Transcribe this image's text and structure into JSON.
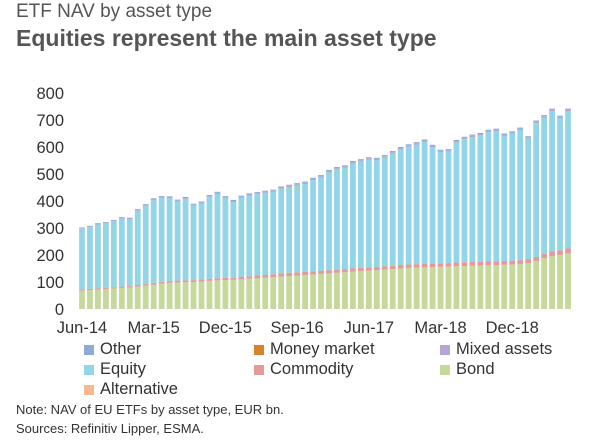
{
  "header": {
    "subtitle": "ETF NAV by asset type",
    "title": "Equities represent the main asset type"
  },
  "colors": {
    "other": "#8ea9d6",
    "money_market": "#d9822b",
    "mixed_assets": "#b4a7d6",
    "equity": "#92d5e6",
    "commodity": "#e59a9a",
    "bond": "#c4d99a",
    "alternative": "#f7b98b",
    "axis_text": "#333333"
  },
  "chart_data": {
    "type": "bar",
    "stacked": true,
    "x_tick_labels": [
      "Jun-14",
      "Mar-15",
      "Dec-15",
      "Sep-16",
      "Jun-17",
      "Mar-18",
      "Dec-18"
    ],
    "y_tick_labels": [
      "0",
      "100",
      "200",
      "300",
      "400",
      "500",
      "600",
      "700",
      "800"
    ],
    "ylim": [
      0,
      800
    ],
    "legend_position": "bottom",
    "grid": false,
    "series_order": [
      "Bond",
      "Commodity",
      "Equity",
      "Mixed assets",
      "Other"
    ],
    "totals": [
      302,
      308,
      318,
      322,
      330,
      340,
      338,
      370,
      388,
      410,
      418,
      417,
      405,
      415,
      390,
      398,
      422,
      434,
      418,
      404,
      420,
      428,
      433,
      438,
      442,
      454,
      460,
      466,
      472,
      486,
      496,
      515,
      526,
      532,
      548,
      555,
      562,
      560,
      570,
      585,
      600,
      610,
      618,
      628,
      608,
      590,
      592,
      626,
      638,
      646,
      652,
      664,
      668,
      650,
      658,
      672,
      640,
      698,
      718,
      742,
      716,
      742
    ],
    "bond": [
      68,
      70,
      72,
      74,
      76,
      78,
      80,
      83,
      86,
      90,
      94,
      97,
      98,
      99,
      100,
      102,
      104,
      106,
      107,
      108,
      110,
      112,
      114,
      116,
      118,
      120,
      122,
      124,
      126,
      128,
      130,
      132,
      134,
      136,
      138,
      140,
      142,
      144,
      146,
      148,
      150,
      152,
      153,
      154,
      155,
      156,
      157,
      158,
      159,
      160,
      161,
      162,
      163,
      164,
      165,
      167,
      170,
      178,
      188,
      196,
      200,
      206
    ],
    "commodity": [
      5,
      5,
      5,
      5,
      5,
      5,
      5,
      6,
      6,
      7,
      7,
      7,
      7,
      7,
      7,
      7,
      8,
      8,
      8,
      8,
      9,
      9,
      10,
      10,
      11,
      12,
      12,
      12,
      12,
      12,
      12,
      12,
      12,
      12,
      12,
      12,
      12,
      12,
      12,
      12,
      13,
      13,
      13,
      13,
      13,
      13,
      13,
      14,
      14,
      14,
      14,
      14,
      14,
      14,
      14,
      14,
      15,
      15,
      16,
      17,
      17,
      18
    ],
    "mixed_assets": [
      2,
      2,
      2,
      2,
      2,
      2,
      2,
      3,
      3,
      3,
      3,
      3,
      3,
      3,
      3,
      3,
      3,
      4,
      4,
      4,
      4,
      4,
      4,
      4,
      4,
      4,
      4,
      5,
      5,
      5,
      5,
      5,
      5,
      5,
      5,
      5,
      5,
      5,
      5,
      5,
      5,
      5,
      5,
      5,
      5,
      5,
      5,
      5,
      5,
      5,
      5,
      5,
      5,
      5,
      5,
      5,
      5,
      6,
      6,
      6,
      6,
      6
    ],
    "other": [
      3,
      3,
      3,
      3,
      3,
      3,
      3,
      3,
      4,
      4,
      4,
      4,
      4,
      4,
      4,
      4,
      4,
      4,
      4,
      4,
      4,
      4,
      4,
      4,
      4,
      4,
      4,
      4,
      4,
      4,
      4,
      4,
      4,
      4,
      4,
      4,
      4,
      4,
      4,
      4,
      4,
      4,
      4,
      4,
      4,
      4,
      4,
      4,
      4,
      4,
      4,
      4,
      4,
      4,
      4,
      4,
      4,
      4,
      4,
      4,
      4,
      4
    ]
  },
  "legend": {
    "items": [
      {
        "label": "Other",
        "color_key": "other"
      },
      {
        "label": "Money market",
        "color_key": "money_market"
      },
      {
        "label": "Mixed assets",
        "color_key": "mixed_assets"
      },
      {
        "label": "Equity",
        "color_key": "equity"
      },
      {
        "label": "Commodity",
        "color_key": "commodity"
      },
      {
        "label": "Bond",
        "color_key": "bond"
      },
      {
        "label": "Alternative",
        "color_key": "alternative"
      }
    ]
  },
  "footer": {
    "note": "Note: NAV of EU ETFs by asset type, EUR bn.",
    "source": "Sources: Refinitiv Lipper, ESMA."
  }
}
